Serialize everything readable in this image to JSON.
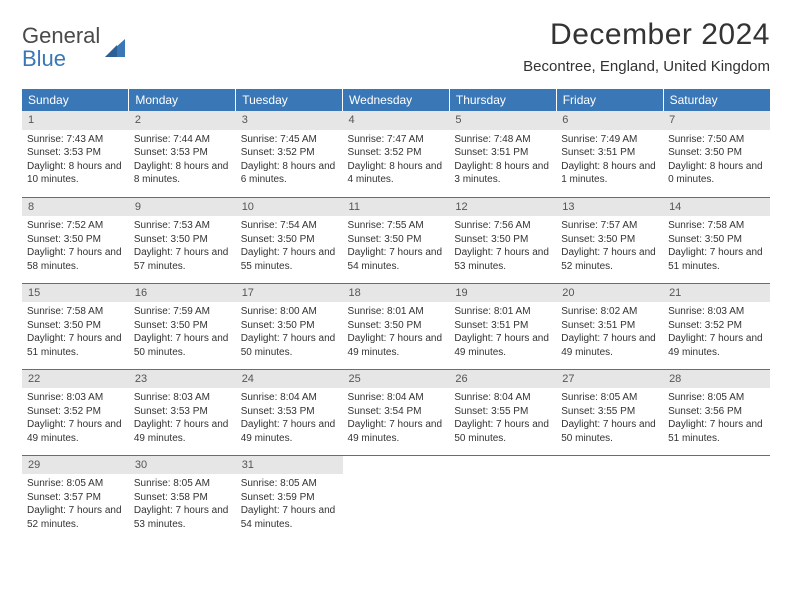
{
  "logo": {
    "line1": "General",
    "line2": "Blue",
    "shape_color": "#3a77b7",
    "text_color": "#4a4a4a",
    "blue_color": "#3a77b7"
  },
  "title": "December 2024",
  "location": "Becontree, England, United Kingdom",
  "colors": {
    "header_bg": "#3a77b7",
    "header_fg": "#ffffff",
    "daynum_bg": "#e6e6e6",
    "border": "#3a77b7",
    "text": "#333333"
  },
  "day_headers": [
    "Sunday",
    "Monday",
    "Tuesday",
    "Wednesday",
    "Thursday",
    "Friday",
    "Saturday"
  ],
  "weeks": [
    [
      {
        "n": "1",
        "sunrise": "7:43 AM",
        "sunset": "3:53 PM",
        "day_h": "8",
        "day_m": "10"
      },
      {
        "n": "2",
        "sunrise": "7:44 AM",
        "sunset": "3:53 PM",
        "day_h": "8",
        "day_m": "8"
      },
      {
        "n": "3",
        "sunrise": "7:45 AM",
        "sunset": "3:52 PM",
        "day_h": "8",
        "day_m": "6"
      },
      {
        "n": "4",
        "sunrise": "7:47 AM",
        "sunset": "3:52 PM",
        "day_h": "8",
        "day_m": "4"
      },
      {
        "n": "5",
        "sunrise": "7:48 AM",
        "sunset": "3:51 PM",
        "day_h": "8",
        "day_m": "3"
      },
      {
        "n": "6",
        "sunrise": "7:49 AM",
        "sunset": "3:51 PM",
        "day_h": "8",
        "day_m": "1"
      },
      {
        "n": "7",
        "sunrise": "7:50 AM",
        "sunset": "3:50 PM",
        "day_h": "8",
        "day_m": "0"
      }
    ],
    [
      {
        "n": "8",
        "sunrise": "7:52 AM",
        "sunset": "3:50 PM",
        "day_h": "7",
        "day_m": "58"
      },
      {
        "n": "9",
        "sunrise": "7:53 AM",
        "sunset": "3:50 PM",
        "day_h": "7",
        "day_m": "57"
      },
      {
        "n": "10",
        "sunrise": "7:54 AM",
        "sunset": "3:50 PM",
        "day_h": "7",
        "day_m": "55"
      },
      {
        "n": "11",
        "sunrise": "7:55 AM",
        "sunset": "3:50 PM",
        "day_h": "7",
        "day_m": "54"
      },
      {
        "n": "12",
        "sunrise": "7:56 AM",
        "sunset": "3:50 PM",
        "day_h": "7",
        "day_m": "53"
      },
      {
        "n": "13",
        "sunrise": "7:57 AM",
        "sunset": "3:50 PM",
        "day_h": "7",
        "day_m": "52"
      },
      {
        "n": "14",
        "sunrise": "7:58 AM",
        "sunset": "3:50 PM",
        "day_h": "7",
        "day_m": "51"
      }
    ],
    [
      {
        "n": "15",
        "sunrise": "7:58 AM",
        "sunset": "3:50 PM",
        "day_h": "7",
        "day_m": "51"
      },
      {
        "n": "16",
        "sunrise": "7:59 AM",
        "sunset": "3:50 PM",
        "day_h": "7",
        "day_m": "50"
      },
      {
        "n": "17",
        "sunrise": "8:00 AM",
        "sunset": "3:50 PM",
        "day_h": "7",
        "day_m": "50"
      },
      {
        "n": "18",
        "sunrise": "8:01 AM",
        "sunset": "3:50 PM",
        "day_h": "7",
        "day_m": "49"
      },
      {
        "n": "19",
        "sunrise": "8:01 AM",
        "sunset": "3:51 PM",
        "day_h": "7",
        "day_m": "49"
      },
      {
        "n": "20",
        "sunrise": "8:02 AM",
        "sunset": "3:51 PM",
        "day_h": "7",
        "day_m": "49"
      },
      {
        "n": "21",
        "sunrise": "8:03 AM",
        "sunset": "3:52 PM",
        "day_h": "7",
        "day_m": "49"
      }
    ],
    [
      {
        "n": "22",
        "sunrise": "8:03 AM",
        "sunset": "3:52 PM",
        "day_h": "7",
        "day_m": "49"
      },
      {
        "n": "23",
        "sunrise": "8:03 AM",
        "sunset": "3:53 PM",
        "day_h": "7",
        "day_m": "49"
      },
      {
        "n": "24",
        "sunrise": "8:04 AM",
        "sunset": "3:53 PM",
        "day_h": "7",
        "day_m": "49"
      },
      {
        "n": "25",
        "sunrise": "8:04 AM",
        "sunset": "3:54 PM",
        "day_h": "7",
        "day_m": "49"
      },
      {
        "n": "26",
        "sunrise": "8:04 AM",
        "sunset": "3:55 PM",
        "day_h": "7",
        "day_m": "50"
      },
      {
        "n": "27",
        "sunrise": "8:05 AM",
        "sunset": "3:55 PM",
        "day_h": "7",
        "day_m": "50"
      },
      {
        "n": "28",
        "sunrise": "8:05 AM",
        "sunset": "3:56 PM",
        "day_h": "7",
        "day_m": "51"
      }
    ],
    [
      {
        "n": "29",
        "sunrise": "8:05 AM",
        "sunset": "3:57 PM",
        "day_h": "7",
        "day_m": "52"
      },
      {
        "n": "30",
        "sunrise": "8:05 AM",
        "sunset": "3:58 PM",
        "day_h": "7",
        "day_m": "53"
      },
      {
        "n": "31",
        "sunrise": "8:05 AM",
        "sunset": "3:59 PM",
        "day_h": "7",
        "day_m": "54"
      },
      null,
      null,
      null,
      null
    ]
  ]
}
